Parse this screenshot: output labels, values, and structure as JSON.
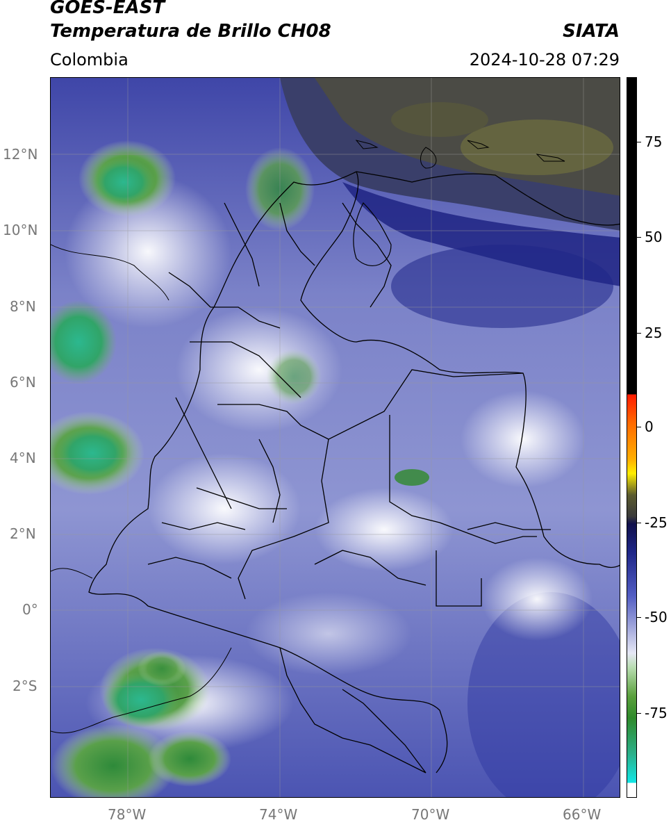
{
  "header": {
    "satellite": "GOES-EAST",
    "product": "Temperatura de Brillo CH08",
    "agency": "SIATA",
    "region": "Colombia",
    "datetime": "2024-10-28 07:29"
  },
  "map": {
    "lat_labels": [
      "12°N",
      "10°N",
      "8°N",
      "6°N",
      "4°N",
      "2°N",
      "0°",
      "2°S"
    ],
    "lon_labels": [
      "78°W",
      "74°W",
      "70°W",
      "66°W"
    ]
  },
  "colorbar": {
    "ticks": [
      "75",
      "50",
      "25",
      "0",
      "-25",
      "-50",
      "-75"
    ]
  },
  "colors": {
    "cloud_high": "#2bb08a",
    "cloud_mid": "#2f8a2b",
    "ir_dark": "#1f2788",
    "ir_light": "#e6e8f5",
    "warm": "#3a3a3a"
  }
}
